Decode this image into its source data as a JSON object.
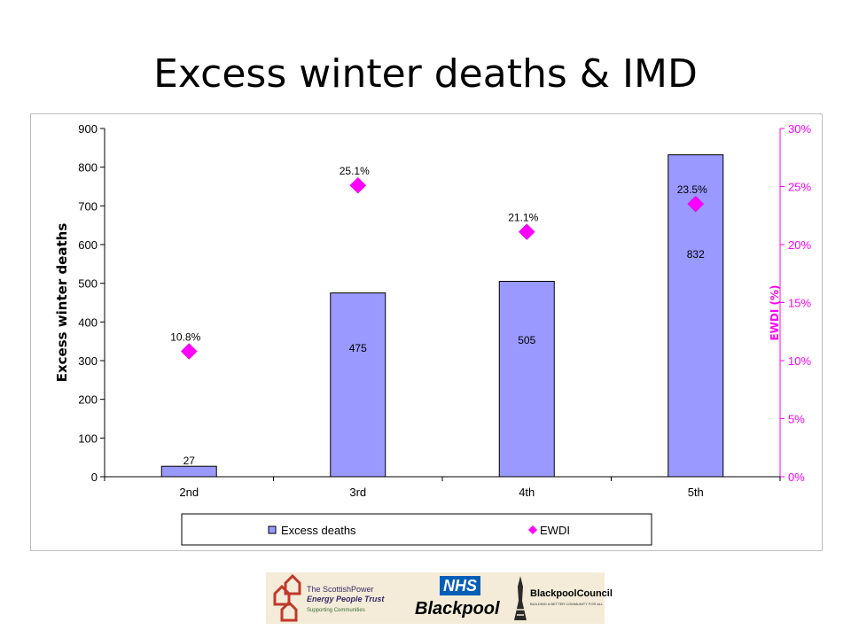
{
  "slide": {
    "title": "Excess winter deaths & IMD"
  },
  "chart_data": {
    "type": "bar",
    "categories": [
      "2nd",
      "3rd",
      "4th",
      "5th"
    ],
    "series": [
      {
        "name": "Excess deaths",
        "type": "bar",
        "axis": "left",
        "values": [
          27,
          475,
          505,
          832
        ],
        "color": "#9999ff"
      },
      {
        "name": "EWDI",
        "type": "scatter",
        "axis": "right",
        "values": [
          10.8,
          25.1,
          21.1,
          23.5
        ],
        "color": "#ff00ff"
      }
    ],
    "data_labels": {
      "bars": [
        "27",
        "475",
        "505",
        "832"
      ],
      "points": [
        "10.8%",
        "25.1%",
        "21.1%",
        "23.5%"
      ]
    },
    "ylabel": "Excess winter deaths",
    "y2label": "EWDI (%)",
    "ylim": [
      0,
      900
    ],
    "y2lim": [
      0,
      30
    ],
    "yticks": [
      "0",
      "100",
      "200",
      "300",
      "400",
      "500",
      "600",
      "700",
      "800",
      "900"
    ],
    "y2ticks": [
      "0%",
      "5%",
      "10%",
      "15%",
      "20%",
      "25%",
      "30%"
    ],
    "legend_position": "bottom",
    "grid": false
  },
  "logos": {
    "energy_trust_line1": "The ScottishPower",
    "energy_trust_line2": "Energy People Trust",
    "energy_trust_line3": "Supporting Communities",
    "nhs_mark": "NHS",
    "nhs_place": "Blackpool",
    "council_name": "BlackpoolCouncil",
    "council_tagline": "BUILDING A BETTER COMMUNITY FOR ALL"
  }
}
